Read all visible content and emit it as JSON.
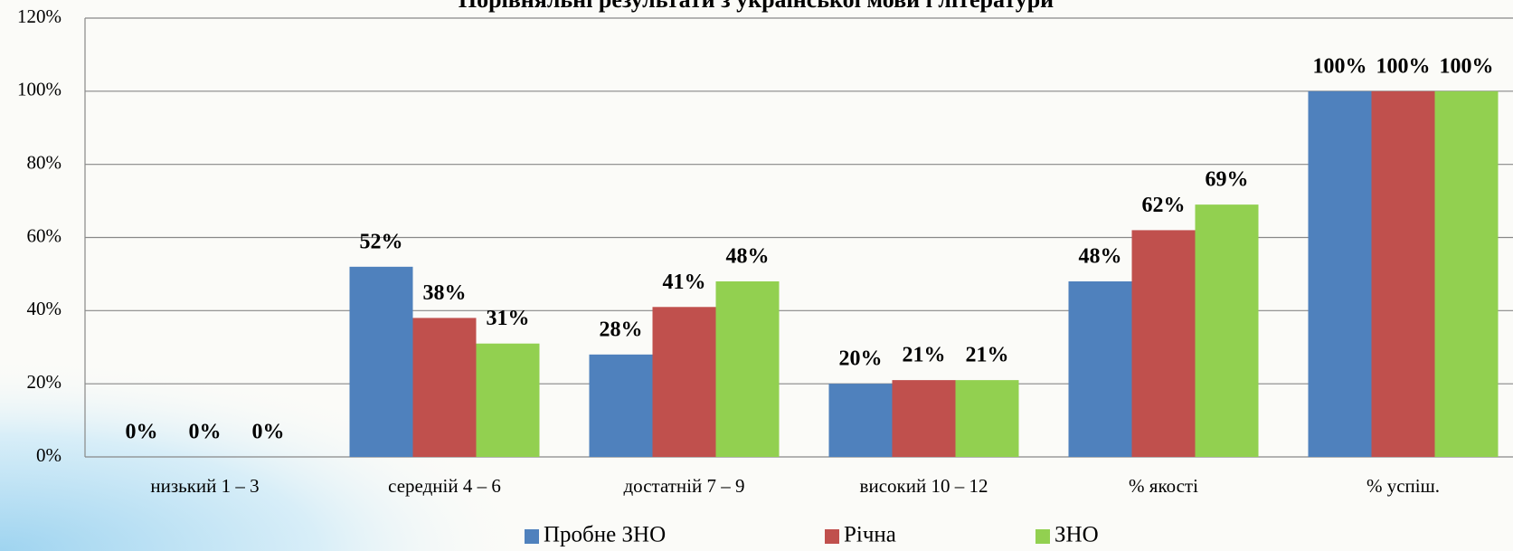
{
  "chart_data": {
    "type": "bar",
    "title": "Порівняльні результати з української мови і літератури",
    "categories": [
      "низький 1 – 3",
      "середній 4 – 6",
      "достатній 7 – 9",
      "високий 10 – 12",
      "% якості",
      "% успіш."
    ],
    "series": [
      {
        "name": "Пробне ЗНО",
        "color": "#4f81bd",
        "values": [
          0,
          52,
          28,
          20,
          48,
          100
        ],
        "value_labels": [
          "0%",
          "52%",
          "28%",
          "20%",
          "48%",
          "100%"
        ]
      },
      {
        "name": "Річна",
        "color": "#c0504d",
        "values": [
          0,
          38,
          41,
          21,
          62,
          100
        ],
        "value_labels": [
          "0%",
          "38%",
          "41%",
          "21%",
          "62%",
          "100%"
        ]
      },
      {
        "name": "ЗНО",
        "color": "#92d050",
        "values": [
          0,
          31,
          48,
          21,
          69,
          100
        ],
        "value_labels": [
          "0%",
          "31%",
          "48%",
          "21%",
          "69%",
          "100%"
        ]
      }
    ],
    "ylim": [
      0,
      120
    ],
    "yticks": [
      {
        "value": 0,
        "label": "0%"
      },
      {
        "value": 20,
        "label": "20%"
      },
      {
        "value": 40,
        "label": "40%"
      },
      {
        "value": 60,
        "label": "60%"
      },
      {
        "value": 80,
        "label": "80%"
      },
      {
        "value": 100,
        "label": "100%"
      },
      {
        "value": 120,
        "label": "120%"
      }
    ],
    "grid": true,
    "legend": "bottom"
  }
}
